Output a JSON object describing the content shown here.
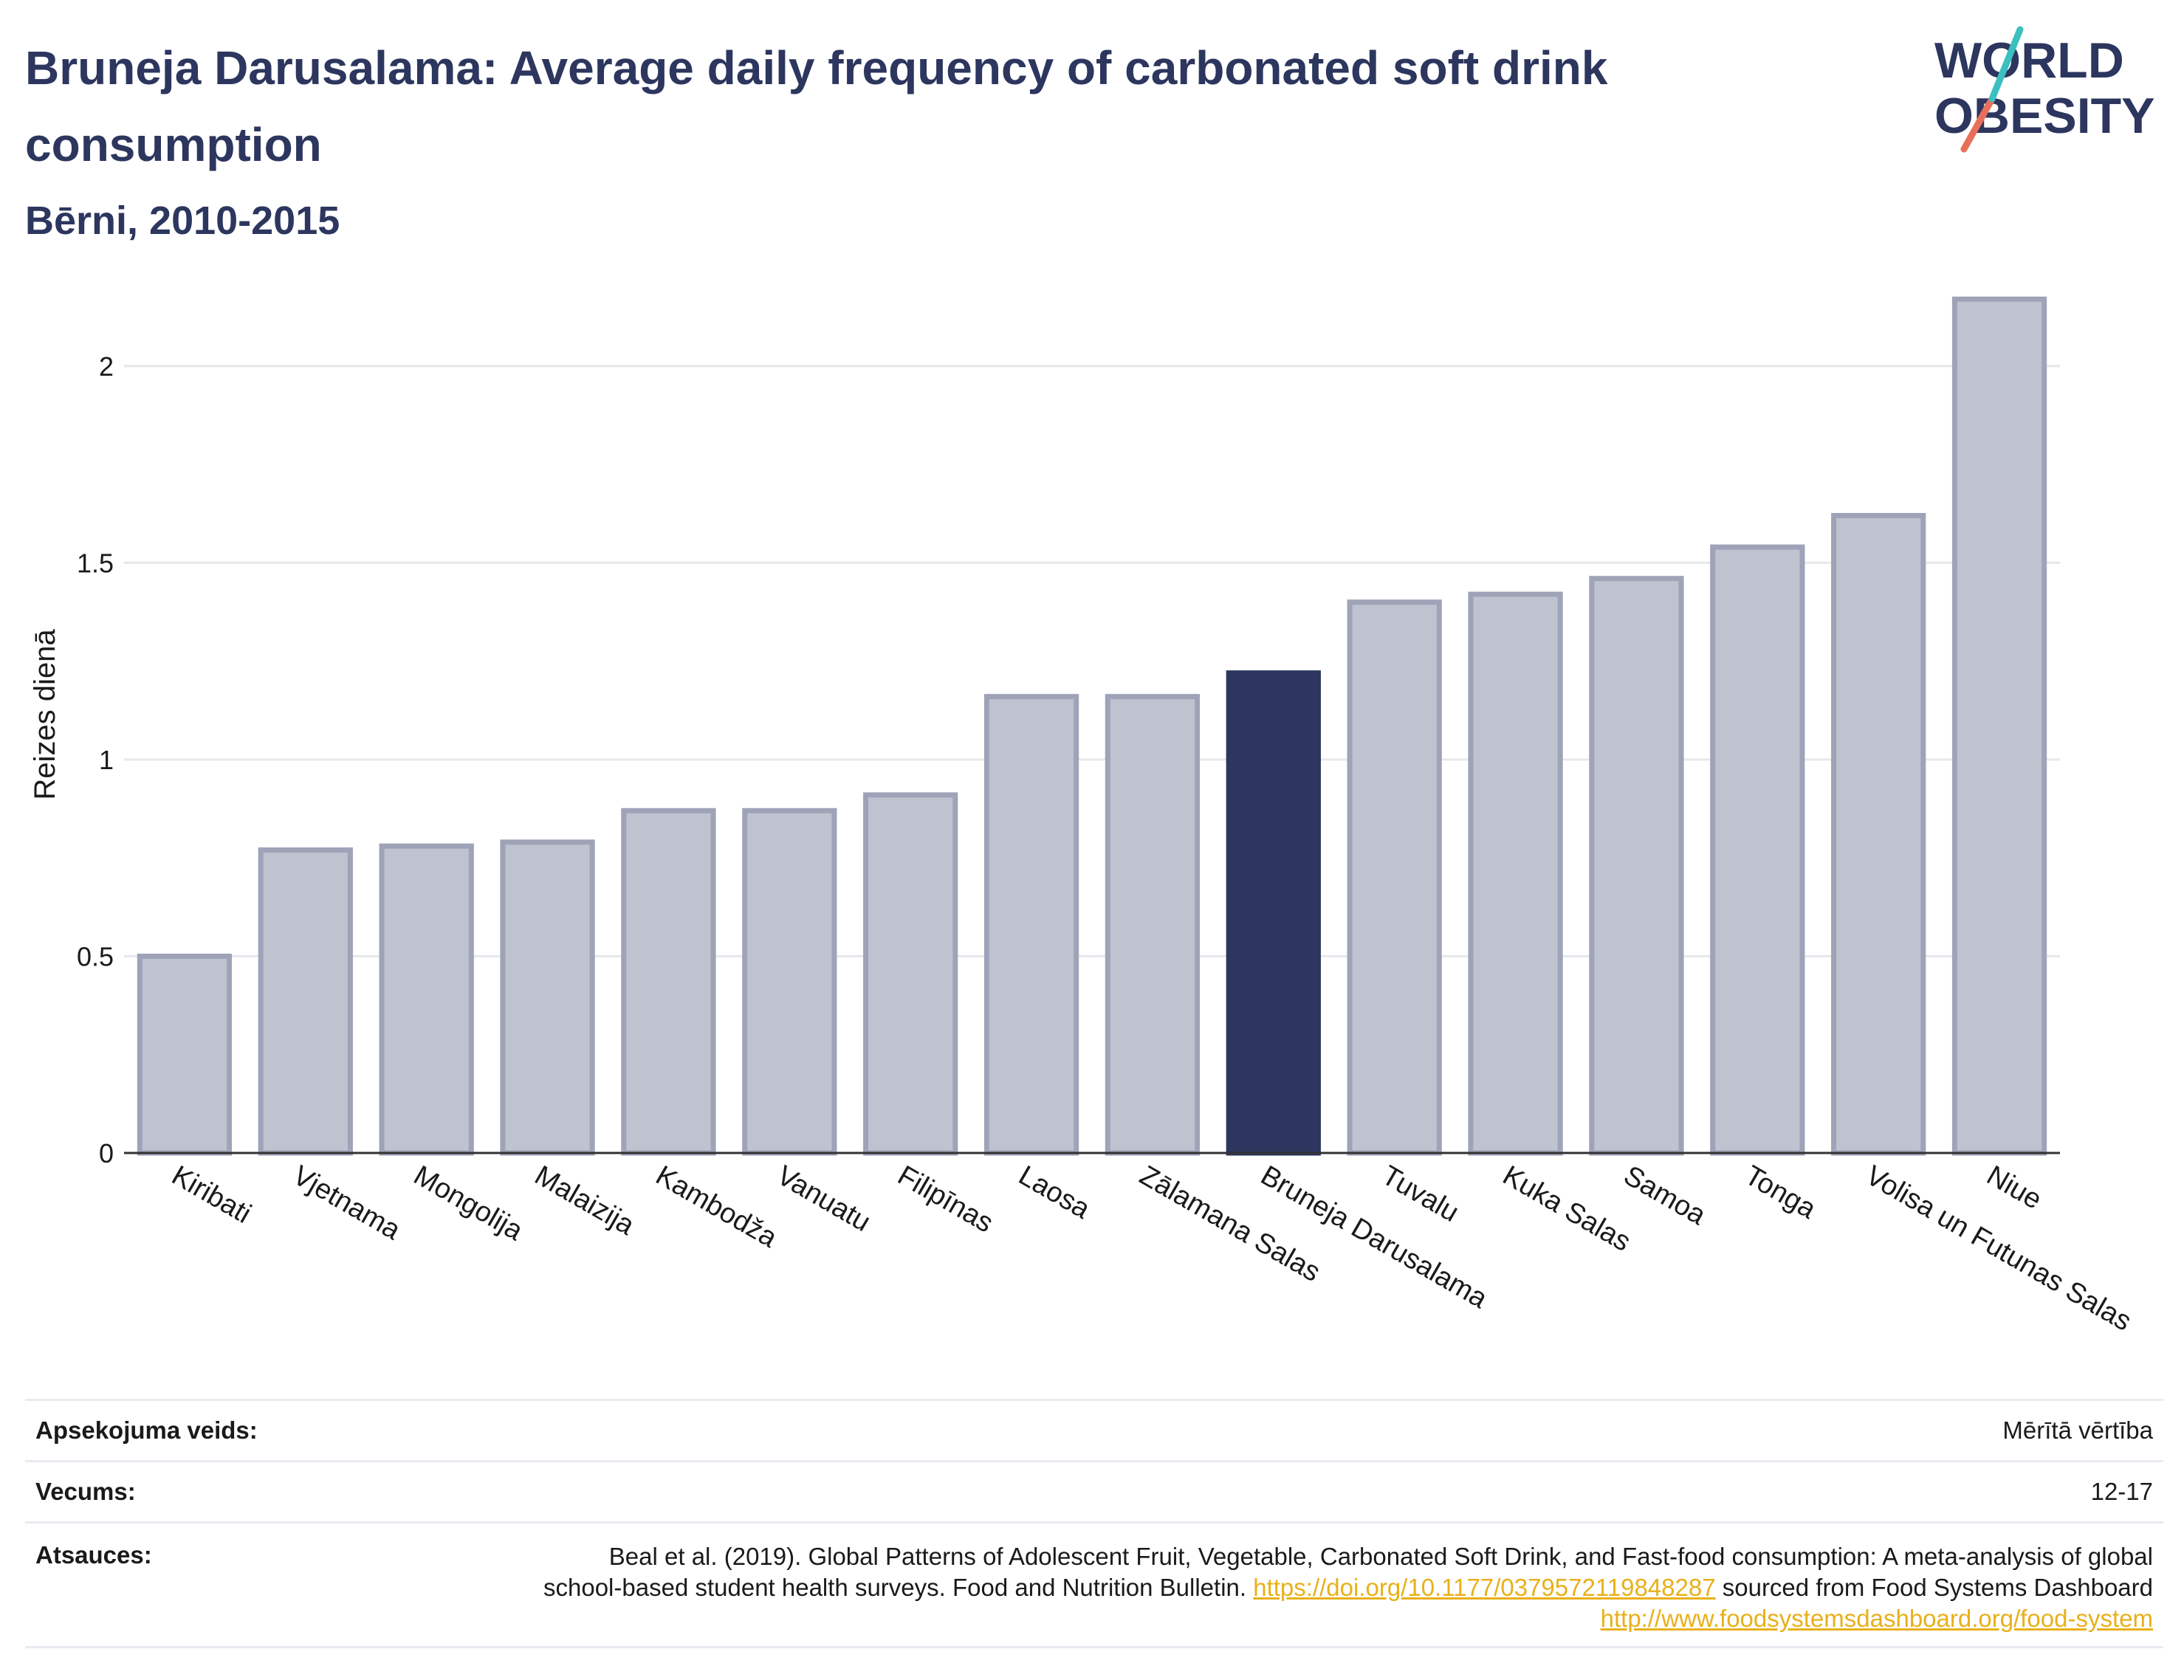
{
  "header": {
    "title": "Bruneja Darusalama: Average daily frequency of carbonated soft drink consumption",
    "subtitle": "Bērni, 2010-2015"
  },
  "logo": {
    "line1": "WORLD",
    "line2": "OBESITY",
    "accent_teal": "#3bbfbf",
    "accent_coral": "#e8705a"
  },
  "colors": {
    "bar": "#bfc2cf",
    "bar_border": "#9ea3b8",
    "highlight": "#2c365e",
    "grid": "#e6e8ec"
  },
  "chart_data": {
    "type": "bar",
    "title": "Bruneja Darusalama: Average daily frequency of carbonated soft drink consumption",
    "subtitle": "Bērni, 2010-2015",
    "ylabel": "Reizes dienā",
    "xlabel": "",
    "ylim": [
      0,
      2.3
    ],
    "yticks": [
      0,
      0.5,
      1,
      1.5,
      2
    ],
    "ytick_labels": [
      "0",
      "0.5",
      "1",
      "1.5",
      "2"
    ],
    "grid": true,
    "categories": [
      "Kiribati",
      "Vjetnama",
      "Mongolija",
      "Malaizija",
      "Kambodža",
      "Vanuatu",
      "Filipīnas",
      "Laosa",
      "Zālamana Salas",
      "Bruneja Darusalama",
      "Tuvalu",
      "Kuka Salas",
      "Samoa",
      "Tonga",
      "Volisa un Futunas Salas",
      "Niue"
    ],
    "values": [
      0.5,
      0.77,
      0.78,
      0.79,
      0.87,
      0.87,
      0.91,
      1.16,
      1.16,
      1.22,
      1.4,
      1.42,
      1.46,
      1.54,
      1.62,
      2.17
    ],
    "highlight": "Bruneja Darusalama"
  },
  "meta": {
    "survey_label": "Apsekojuma veids:",
    "survey_value": "Mērītā vērtība",
    "age_label": "Vecums:",
    "age_value": "12-17",
    "sources_label": "Atsauces:",
    "sources_text_1": "Beal et al. (2019). Global Patterns of Adolescent Fruit, Vegetable, Carbonated Soft Drink, and Fast-food consumption: A meta-analysis of global school-based student health surveys. Food and Nutrition Bulletin.",
    "sources_link_1": "https://doi.org/10.1177/0379572119848287",
    "sources_text_2": "sourced from Food Systems Dashboard",
    "sources_link_2": "http://www.foodsystemsdashboard.org/food-system"
  }
}
